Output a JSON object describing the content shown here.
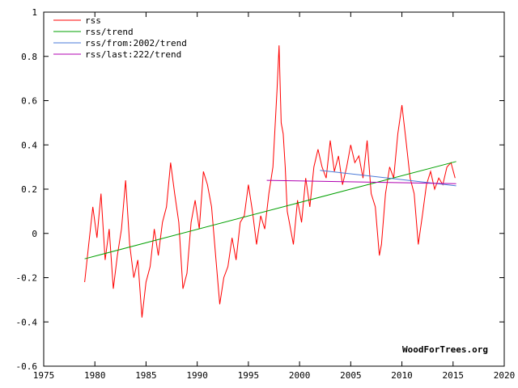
{
  "chart_data": {
    "type": "line",
    "title": "",
    "xlabel": "",
    "ylabel": "",
    "xlim": [
      1975,
      2020
    ],
    "ylim": [
      -0.6,
      1
    ],
    "x_ticks": [
      1975,
      1980,
      1985,
      1990,
      1995,
      2000,
      2005,
      2010,
      2015,
      2020
    ],
    "y_ticks": [
      -0.6,
      -0.4,
      -0.2,
      0,
      0.2,
      0.4,
      0.6,
      0.8,
      1
    ],
    "x_tick_labels": [
      "1975",
      "1980",
      "1985",
      "1990",
      "1995",
      "2000",
      "2005",
      "2010",
      "2015",
      "2020"
    ],
    "y_tick_labels": [
      "-0.6",
      "-0.4",
      "-0.2",
      "0",
      "0.2",
      "0.4",
      "0.6",
      "0.8",
      "1"
    ],
    "grid": false,
    "legend_position": "top-left",
    "watermark": "WoodForTrees.org",
    "series": [
      {
        "name": "rss",
        "color": "#ff0000",
        "x": [
          1979.0,
          1979.4,
          1979.8,
          1980.2,
          1980.6,
          1981.0,
          1981.4,
          1981.8,
          1982.2,
          1982.6,
          1983.0,
          1983.4,
          1983.8,
          1984.2,
          1984.6,
          1985.0,
          1985.4,
          1985.8,
          1986.2,
          1986.6,
          1987.0,
          1987.4,
          1987.8,
          1988.2,
          1988.6,
          1989.0,
          1989.4,
          1989.8,
          1990.2,
          1990.6,
          1991.0,
          1991.4,
          1991.8,
          1992.2,
          1992.6,
          1993.0,
          1993.4,
          1993.8,
          1994.2,
          1994.6,
          1995.0,
          1995.4,
          1995.8,
          1996.2,
          1996.6,
          1997.0,
          1997.4,
          1997.8,
          1998.0,
          1998.2,
          1998.4,
          1998.6,
          1998.8,
          1999.0,
          1999.4,
          1999.8,
          2000.2,
          2000.6,
          2001.0,
          2001.4,
          2001.8,
          2002.2,
          2002.6,
          2003.0,
          2003.4,
          2003.8,
          2004.2,
          2004.6,
          2005.0,
          2005.4,
          2005.8,
          2006.2,
          2006.6,
          2007.0,
          2007.4,
          2007.8,
          2008.0,
          2008.4,
          2008.8,
          2009.2,
          2009.6,
          2010.0,
          2010.4,
          2010.8,
          2011.2,
          2011.6,
          2012.0,
          2012.4,
          2012.8,
          2013.2,
          2013.6,
          2014.0,
          2014.4,
          2014.8,
          2015.2
        ],
        "y": [
          -0.22,
          -0.05,
          0.12,
          -0.02,
          0.18,
          -0.12,
          0.02,
          -0.25,
          -0.1,
          0.02,
          0.24,
          -0.05,
          -0.2,
          -0.12,
          -0.38,
          -0.22,
          -0.15,
          0.02,
          -0.1,
          0.05,
          0.12,
          0.32,
          0.18,
          0.05,
          -0.25,
          -0.18,
          0.05,
          0.15,
          0.02,
          0.28,
          0.22,
          0.12,
          -0.1,
          -0.32,
          -0.2,
          -0.15,
          -0.02,
          -0.12,
          0.05,
          0.08,
          0.22,
          0.1,
          -0.05,
          0.08,
          0.02,
          0.18,
          0.3,
          0.65,
          0.85,
          0.5,
          0.45,
          0.3,
          0.1,
          0.05,
          -0.05,
          0.15,
          0.05,
          0.25,
          0.12,
          0.3,
          0.38,
          0.3,
          0.25,
          0.42,
          0.28,
          0.35,
          0.22,
          0.3,
          0.4,
          0.32,
          0.35,
          0.25,
          0.42,
          0.18,
          0.12,
          -0.1,
          -0.05,
          0.18,
          0.3,
          0.25,
          0.45,
          0.58,
          0.42,
          0.25,
          0.18,
          -0.05,
          0.08,
          0.22,
          0.28,
          0.2,
          0.25,
          0.22,
          0.3,
          0.32,
          0.25
        ]
      },
      {
        "name": "rss/trend",
        "color": "#00a000",
        "x": [
          1979.0,
          2015.3
        ],
        "y": [
          -0.115,
          0.325
        ]
      },
      {
        "name": "rss/from:2002/trend",
        "color": "#4a7ad8",
        "x": [
          2002.0,
          2015.3
        ],
        "y": [
          0.285,
          0.215
        ]
      },
      {
        "name": "rss/last:222/trend",
        "color": "#b000b0",
        "x": [
          1996.8,
          2015.3
        ],
        "y": [
          0.24,
          0.225
        ]
      }
    ]
  }
}
